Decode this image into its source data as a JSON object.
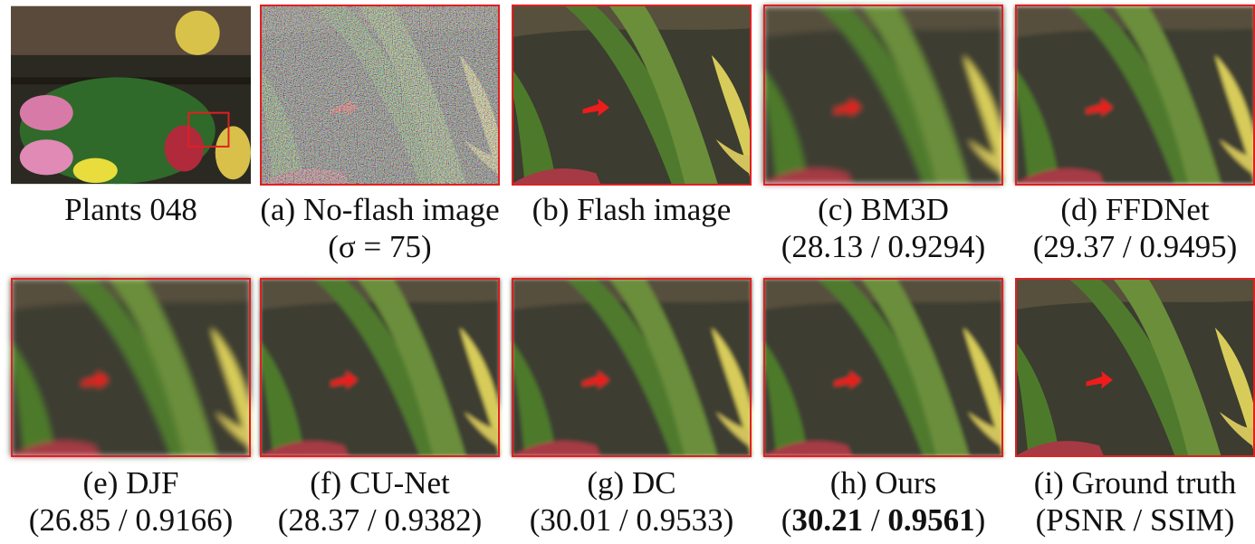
{
  "panels": [
    {
      "caption": [
        "Plants 048"
      ]
    },
    {
      "caption": [
        "(a) No-flash image",
        "(σ = 75)"
      ]
    },
    {
      "caption": [
        "(b) Flash image"
      ]
    },
    {
      "caption": [
        "(c) BM3D",
        "(28.13 / 0.9294)"
      ]
    },
    {
      "caption": [
        "(d) FFDNet",
        "(29.37 / 0.9495)"
      ]
    },
    {
      "caption": [
        "(e) DJF",
        "(26.85 / 0.9166)"
      ]
    },
    {
      "caption": [
        "(f) CU-Net",
        "(28.37 / 0.9382)"
      ]
    },
    {
      "caption": [
        "(g) DC",
        "(30.01 / 0.9533)"
      ]
    },
    {
      "caption": [
        "(h) Ours",
        [
          {
            "text": "(",
            "bold": false
          },
          {
            "text": "30.21",
            "bold": true
          },
          {
            "text": " / ",
            "bold": false
          },
          {
            "text": "0.9561",
            "bold": true
          },
          {
            "text": ")",
            "bold": false
          }
        ]
      ]
    },
    {
      "caption": [
        "(i) Ground truth",
        "(PSNR / SSIM)"
      ]
    }
  ]
}
